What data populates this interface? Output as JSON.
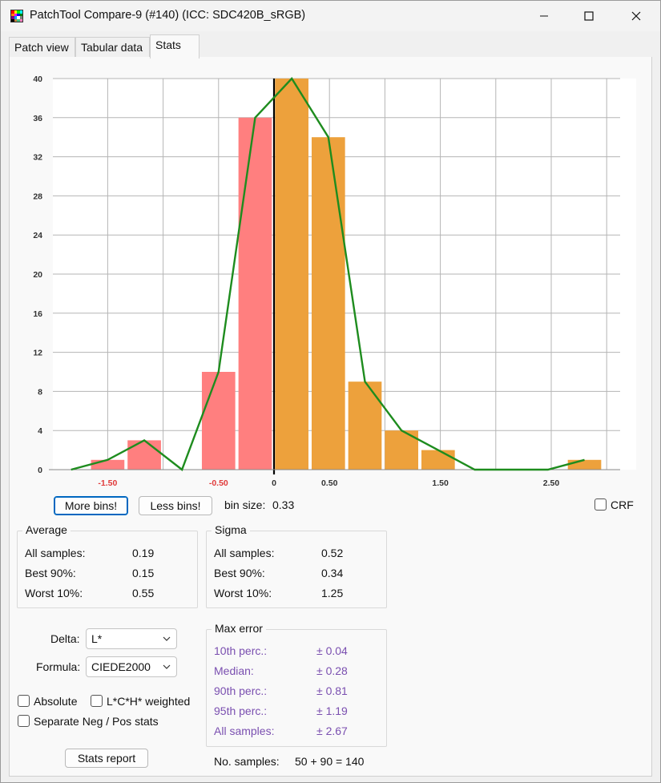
{
  "window": {
    "title": "PatchTool Compare-9 (#140) (ICC: SDC420B_sRGB)"
  },
  "tabs": [
    {
      "label": "Patch view"
    },
    {
      "label": "Tabular data"
    },
    {
      "label": "Stats"
    }
  ],
  "chart_data": {
    "type": "bar",
    "title": "",
    "xlabel": "",
    "ylabel": "",
    "ylim": [
      0,
      40
    ],
    "yticks": [
      "0",
      "4",
      "8",
      "12",
      "16",
      "20",
      "24",
      "28",
      "32",
      "36",
      "40"
    ],
    "xticks": [
      {
        "value": -1.5,
        "label": "-1.50",
        "color": "#e03a3a"
      },
      {
        "value": -0.5,
        "label": "-0.50",
        "color": "#e03a3a"
      },
      {
        "value": 0,
        "label": "0",
        "color": "#333333"
      },
      {
        "value": 0.5,
        "label": "0.50",
        "color": "#333333"
      },
      {
        "value": 1.5,
        "label": "1.50",
        "color": "#333333"
      },
      {
        "value": 2.5,
        "label": "2.50",
        "color": "#333333"
      }
    ],
    "bin_size": 0.33,
    "bars": [
      {
        "x": -1.5,
        "value": 1,
        "sign": "neg"
      },
      {
        "x": -1.17,
        "value": 3,
        "sign": "neg"
      },
      {
        "x": -0.5,
        "value": 10,
        "sign": "neg"
      },
      {
        "x": -0.17,
        "value": 36,
        "sign": "neg"
      },
      {
        "x": 0.16,
        "value": 40,
        "sign": "pos"
      },
      {
        "x": 0.49,
        "value": 34,
        "sign": "pos"
      },
      {
        "x": 0.82,
        "value": 9,
        "sign": "pos"
      },
      {
        "x": 1.15,
        "value": 4,
        "sign": "pos"
      },
      {
        "x": 1.48,
        "value": 2,
        "sign": "pos"
      },
      {
        "x": 2.8,
        "value": 1,
        "sign": "pos"
      }
    ],
    "line": [
      {
        "x": -1.83,
        "y": 0
      },
      {
        "x": -1.5,
        "y": 1
      },
      {
        "x": -1.17,
        "y": 3
      },
      {
        "x": -0.83,
        "y": 0
      },
      {
        "x": -0.5,
        "y": 10
      },
      {
        "x": -0.17,
        "y": 36
      },
      {
        "x": 0.16,
        "y": 40
      },
      {
        "x": 0.49,
        "y": 34
      },
      {
        "x": 0.82,
        "y": 9
      },
      {
        "x": 1.15,
        "y": 4
      },
      {
        "x": 1.48,
        "y": 2
      },
      {
        "x": 1.81,
        "y": 0
      },
      {
        "x": 2.47,
        "y": 0
      },
      {
        "x": 2.8,
        "y": 1
      }
    ],
    "colors": {
      "neg": "#ff7f7f",
      "pos": "#eda13c",
      "line": "#1e8c1e"
    },
    "grid": true
  },
  "controls": {
    "more_bins": "More bins!",
    "less_bins": "Less bins!",
    "bin_size_label": "bin size:",
    "bin_size_value": "0.33",
    "crf_label": "CRF"
  },
  "average": {
    "title": "Average",
    "rows": [
      {
        "label": "All samples:",
        "value": "0.19"
      },
      {
        "label": "Best 90%:",
        "value": "0.15"
      },
      {
        "label": "Worst 10%:",
        "value": "0.55"
      }
    ]
  },
  "sigma": {
    "title": "Sigma",
    "rows": [
      {
        "label": "All samples:",
        "value": "0.52"
      },
      {
        "label": "Best 90%:",
        "value": "0.34"
      },
      {
        "label": "Worst 10%:",
        "value": "1.25"
      }
    ]
  },
  "delta": {
    "label": "Delta:",
    "value": "L*"
  },
  "formula": {
    "label": "Formula:",
    "value": "CIEDE2000"
  },
  "options": {
    "absolute": "Absolute",
    "lch_weighted": "L*C*H* weighted",
    "separate": "Separate Neg / Pos stats"
  },
  "max_error": {
    "title": "Max error",
    "rows": [
      {
        "label": "10th perc.:",
        "value": "± 0.04"
      },
      {
        "label": "Median:",
        "value": "± 0.28"
      },
      {
        "label": "90th perc.:",
        "value": "± 0.81"
      },
      {
        "label": "95th perc.:",
        "value": "± 1.19"
      },
      {
        "label": "All samples:",
        "value": "± 2.67"
      }
    ]
  },
  "stats_report": "Stats report",
  "samples": {
    "label": "No. samples:",
    "value": "50 + 90 = 140"
  }
}
